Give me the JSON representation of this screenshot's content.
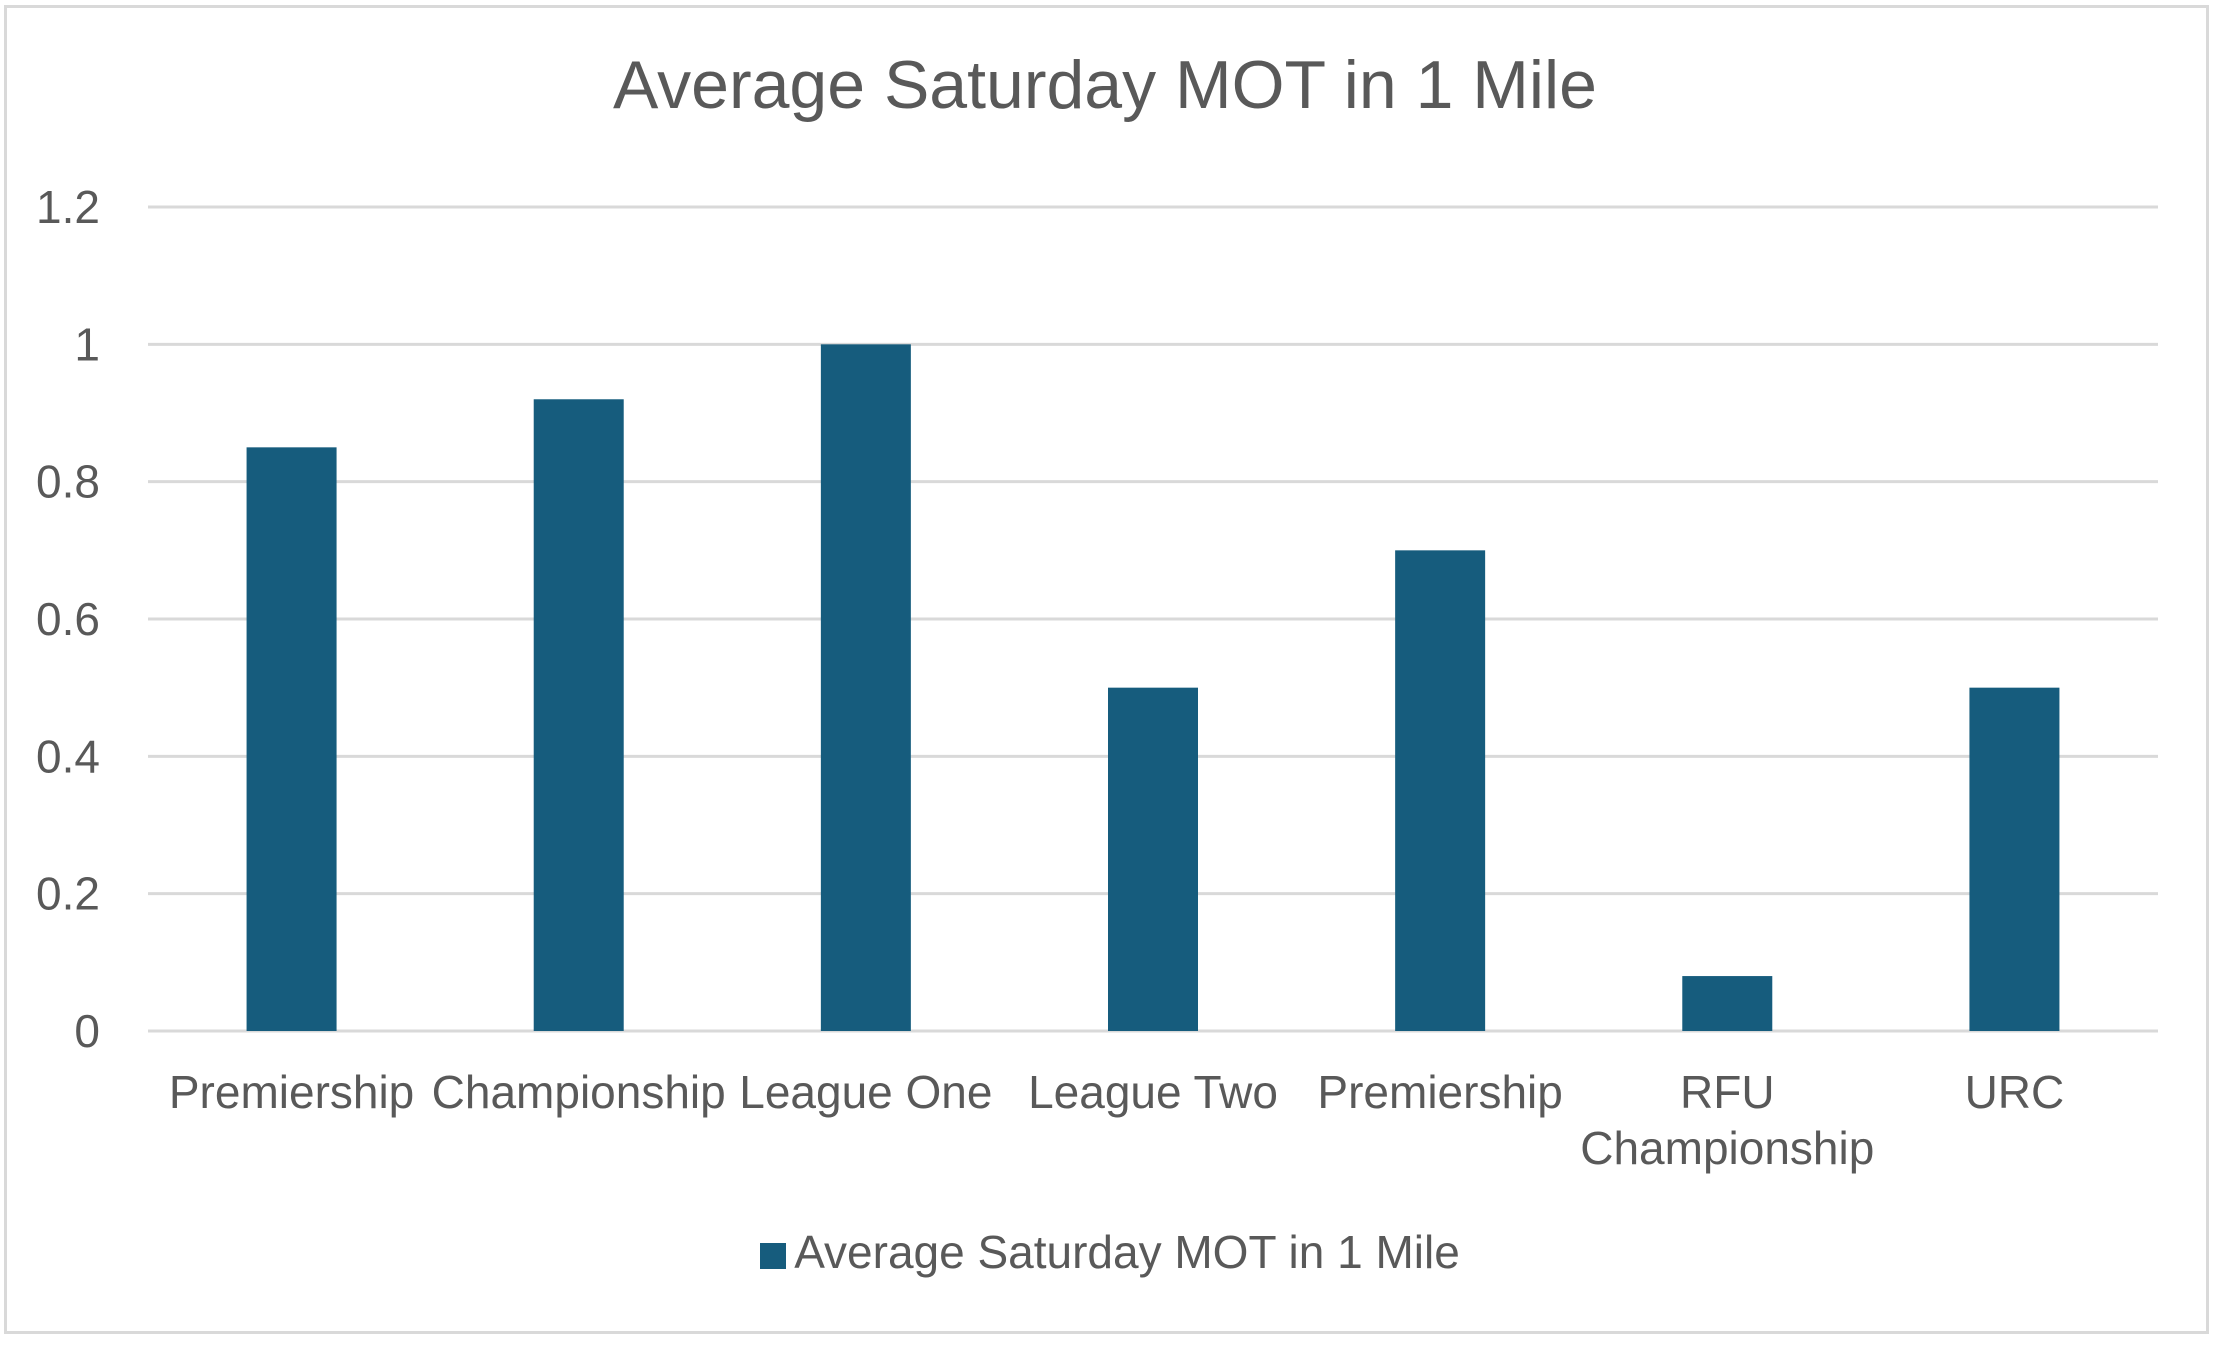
{
  "chart_data": {
    "type": "bar",
    "title": "Average Saturday MOT in 1 Mile",
    "xlabel": "",
    "ylabel": "",
    "categories": [
      "Premiership",
      "Championship",
      "League One",
      "League Two",
      "Premiership",
      "RFU Championship",
      "URC"
    ],
    "series": [
      {
        "name": "Average Saturday MOT in 1 Mile",
        "values": [
          0.85,
          0.92,
          1.0,
          0.5,
          0.7,
          0.08,
          0.5
        ],
        "color": "#165c7d"
      }
    ],
    "ylim": [
      0,
      1.2
    ],
    "yticks": [
      "0",
      "0.2",
      "0.4",
      "0.6",
      "0.8",
      "1",
      "1.2"
    ],
    "grid": true,
    "legend_position": "bottom",
    "gridline_color": "#d9d9d9",
    "text_color": "#595959"
  }
}
